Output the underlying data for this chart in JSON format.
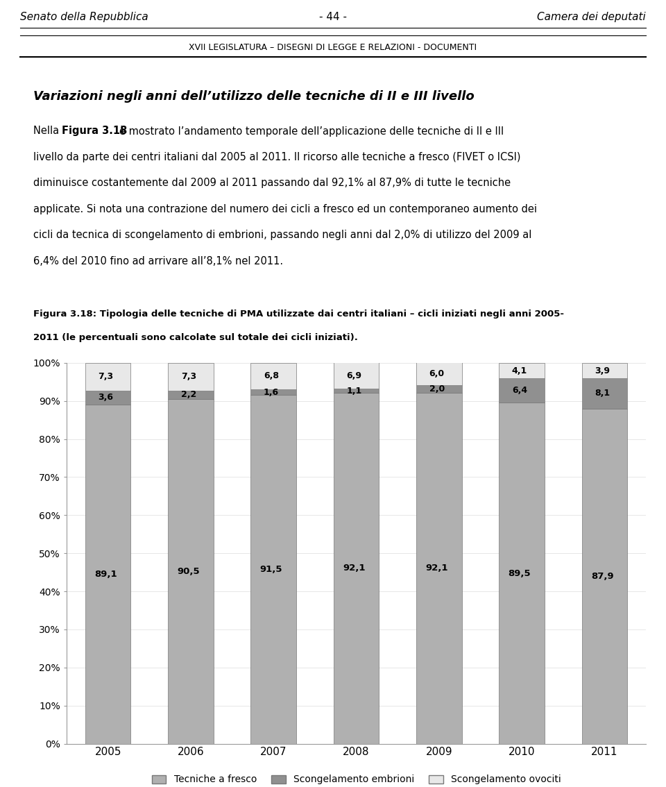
{
  "years": [
    "2005",
    "2006",
    "2007",
    "2008",
    "2009",
    "2010",
    "2011"
  ],
  "tecniche_a_fresco": [
    89.1,
    90.5,
    91.5,
    92.1,
    92.1,
    89.5,
    87.9
  ],
  "scongelamento_embrioni": [
    3.6,
    2.2,
    1.6,
    1.1,
    2.0,
    6.4,
    8.1
  ],
  "scongelamento_ovociti": [
    7.3,
    7.3,
    6.8,
    6.9,
    6.0,
    4.1,
    3.9
  ],
  "color_fresco": "#B0B0B0",
  "color_embrioni": "#909090",
  "color_ovociti": "#E8E8E8",
  "bar_width": 0.55,
  "ylim": [
    0,
    100
  ],
  "yticks": [
    0,
    10,
    20,
    30,
    40,
    50,
    60,
    70,
    80,
    90,
    100
  ],
  "ytick_labels": [
    "0%",
    "10%",
    "20%",
    "30%",
    "40%",
    "50%",
    "60%",
    "70%",
    "80%",
    "90%",
    "100%"
  ],
  "header_left": "Senato della Repubblica",
  "header_center": "- 44 -",
  "header_right": "Camera dei deputati",
  "subheader": "XVII LEGISLATURA – DISEGNI DI LEGGE E RELAZIONI - DOCUMENTI",
  "section_title": "Variazioni negli anni dell’utilizzo delle tecniche di II e III livello",
  "fig_caption_line1": "Figura 3.18: Tipologia delle tecniche di PMA utilizzate dai centri italiani – cicli iniziati negli anni 2005-",
  "fig_caption_line2": "2011 (le percentuali sono calcolate sul totale dei cicli iniziati).",
  "legend_labels": [
    "Tecniche a fresco",
    "Scongelamento embrioni",
    "Scongelamento ovociti"
  ],
  "background_color": "#FFFFFF",
  "fresco_label_values": [
    "89,1",
    "90,5",
    "91,5",
    "92,1",
    "92,1",
    "89,5",
    "87,9"
  ],
  "embrioni_label_values": [
    "3,6",
    "2,2",
    "1,6",
    "1,1",
    "2,0",
    "6,4",
    "8,1"
  ],
  "ovociti_label_values": [
    "7,3",
    "7,3",
    "6,8",
    "6,9",
    "6,0",
    "4,1",
    "3,9"
  ]
}
